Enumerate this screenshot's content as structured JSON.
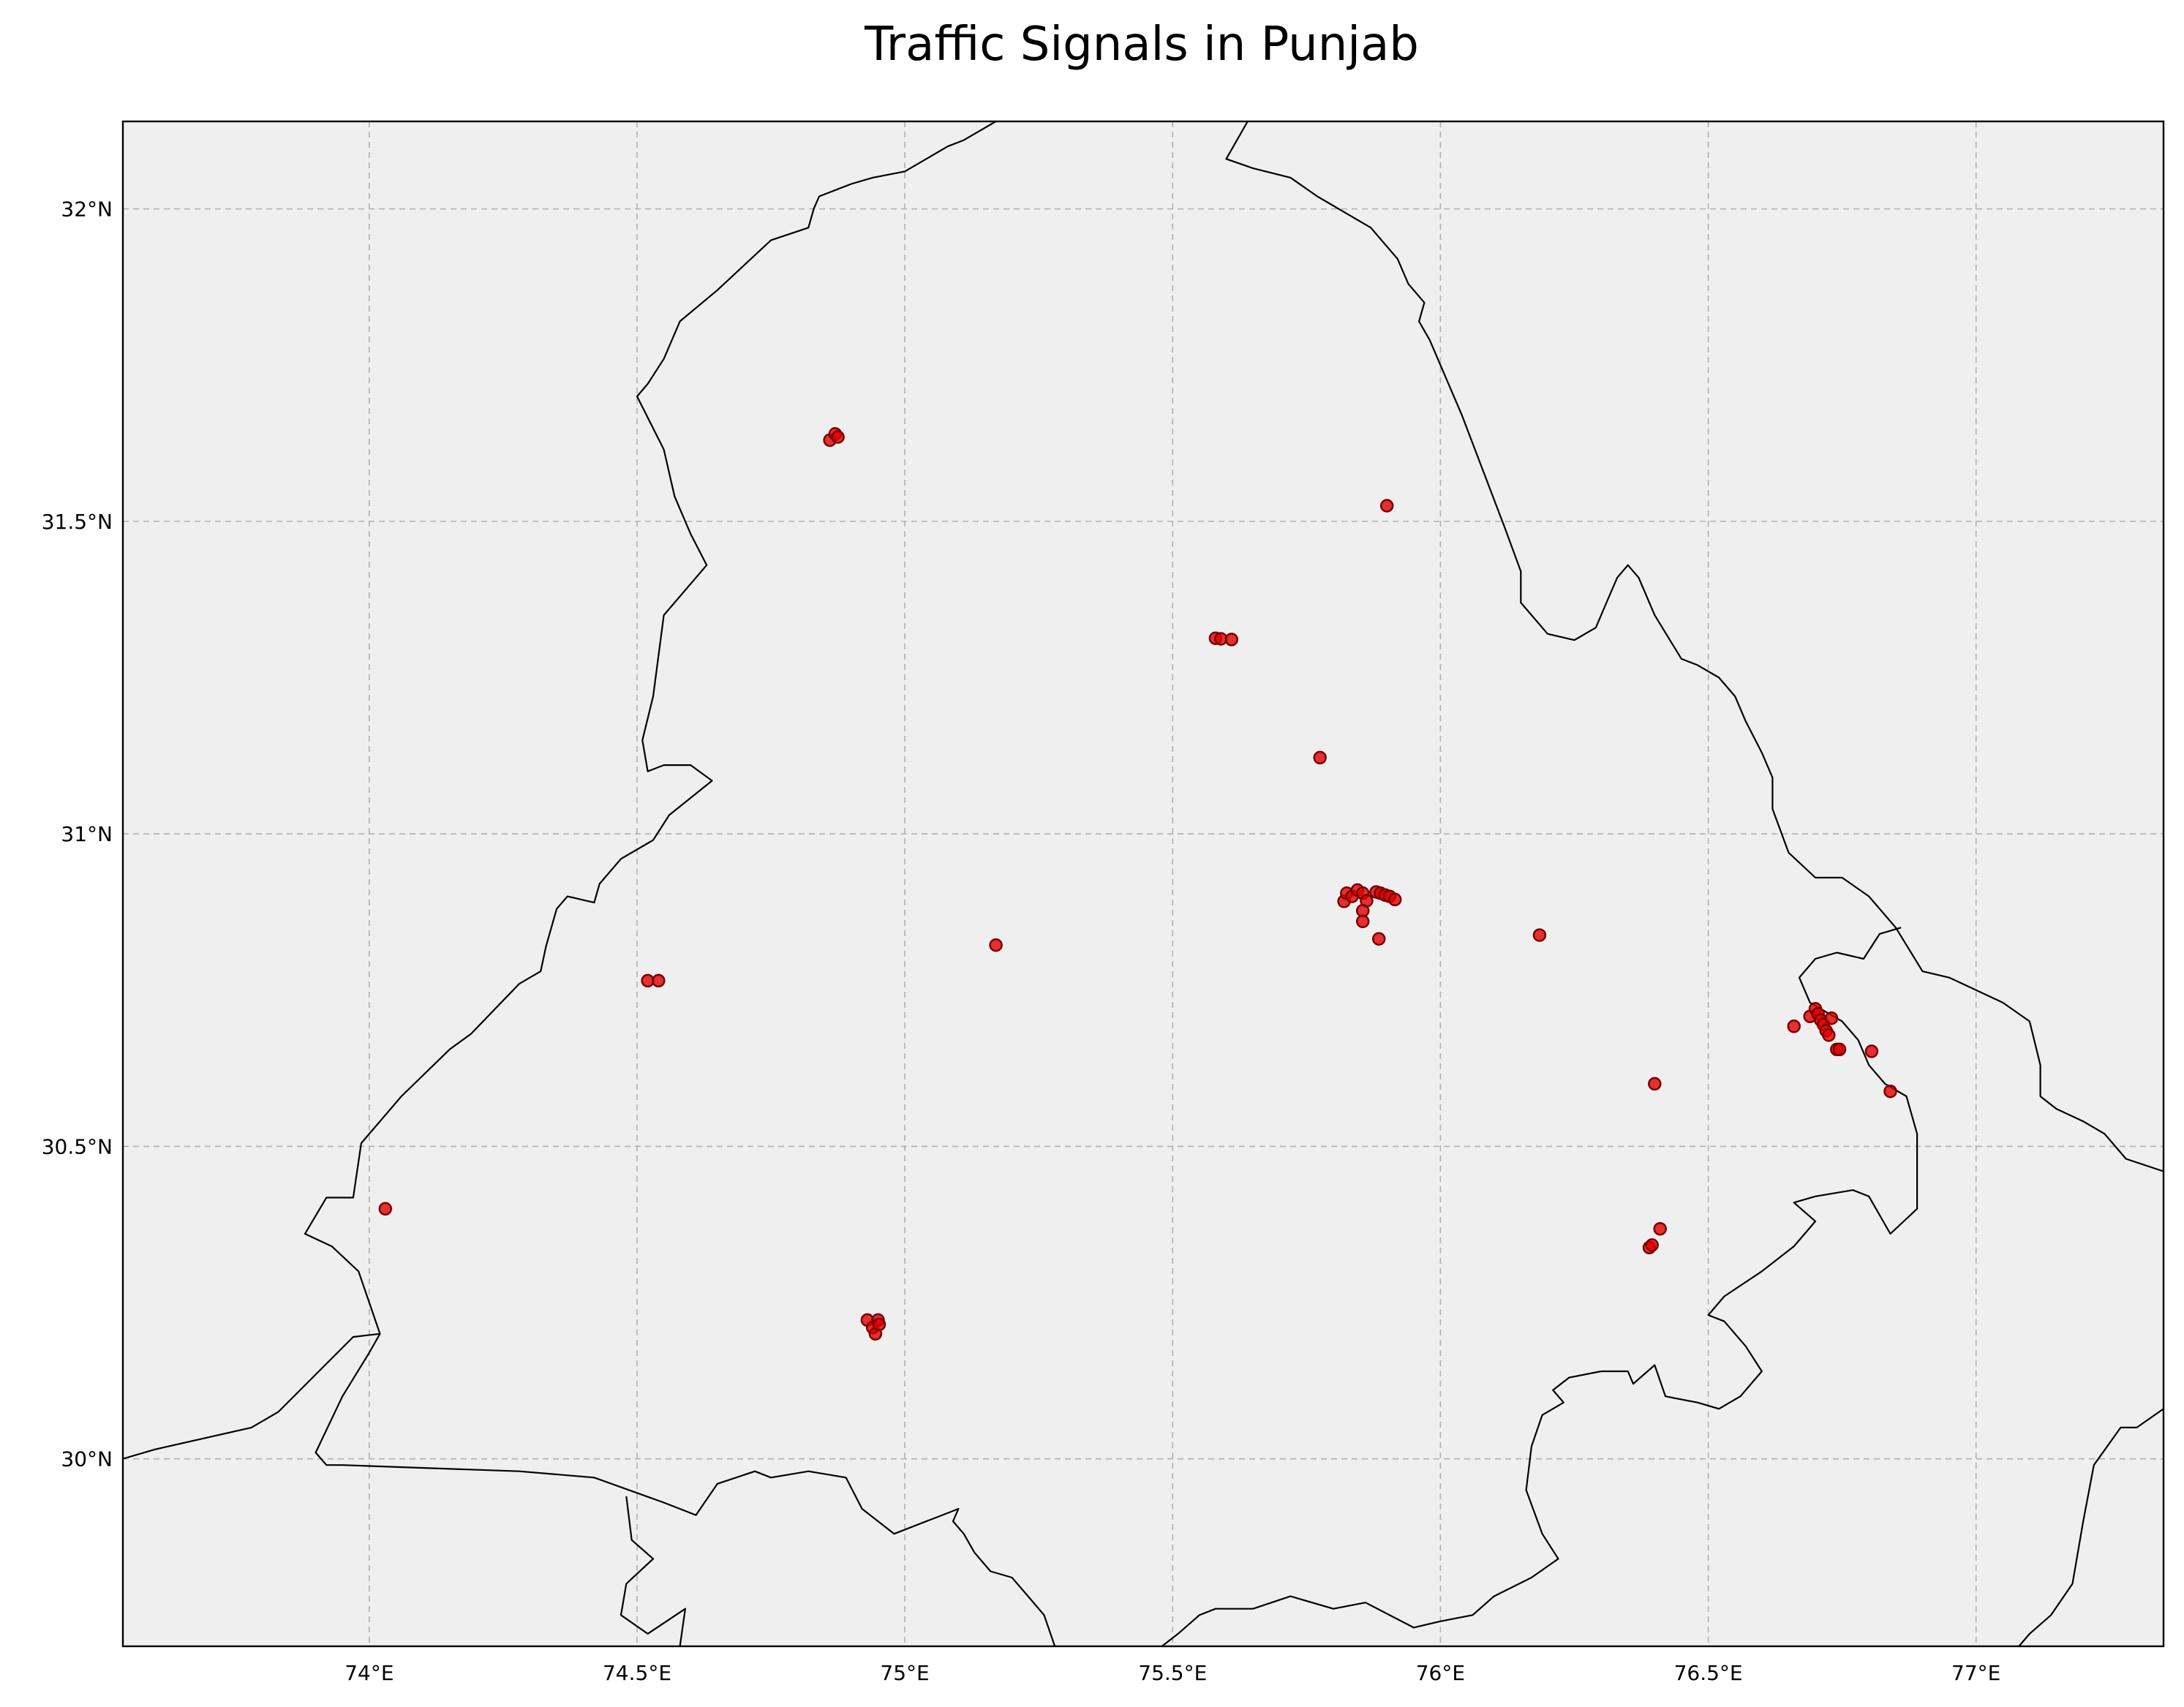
{
  "chart_data": {
    "type": "scatter",
    "title": "Traffic Signals in Punjab",
    "xlim": [
      73.54,
      77.35
    ],
    "ylim": [
      29.7,
      32.14
    ],
    "xticks": [
      74.0,
      74.5,
      75.0,
      75.5,
      76.0,
      76.5,
      77.0
    ],
    "xtick_labels": [
      "74°E",
      "74.5°E",
      "75°E",
      "75.5°E",
      "76°E",
      "76.5°E",
      "77°E"
    ],
    "yticks": [
      30.0,
      30.5,
      31.0,
      31.5,
      32.0
    ],
    "ytick_labels": [
      "30°N",
      "30.5°N",
      "31°N",
      "31.5°N",
      "32°N"
    ],
    "grid": true,
    "background_color": "#efefef",
    "marker_color": "#e00000",
    "marker_edge_color": "#7a0000",
    "border_color": "#000000",
    "series": [
      {
        "points": [
          {
            "lon": 74.86,
            "lat": 31.63
          },
          {
            "lon": 74.87,
            "lat": 31.64
          },
          {
            "lon": 74.875,
            "lat": 31.635
          },
          {
            "lon": 75.9,
            "lat": 31.525
          },
          {
            "lon": 75.58,
            "lat": 31.313
          },
          {
            "lon": 75.59,
            "lat": 31.312
          },
          {
            "lon": 75.61,
            "lat": 31.311
          },
          {
            "lon": 75.775,
            "lat": 31.122
          },
          {
            "lon": 75.82,
            "lat": 30.892
          },
          {
            "lon": 75.825,
            "lat": 30.905
          },
          {
            "lon": 75.835,
            "lat": 30.9
          },
          {
            "lon": 75.845,
            "lat": 30.91
          },
          {
            "lon": 75.855,
            "lat": 30.905
          },
          {
            "lon": 75.862,
            "lat": 30.893
          },
          {
            "lon": 75.855,
            "lat": 30.877
          },
          {
            "lon": 75.855,
            "lat": 30.86
          },
          {
            "lon": 75.88,
            "lat": 30.907
          },
          {
            "lon": 75.888,
            "lat": 30.905
          },
          {
            "lon": 75.897,
            "lat": 30.902
          },
          {
            "lon": 75.905,
            "lat": 30.9
          },
          {
            "lon": 75.915,
            "lat": 30.895
          },
          {
            "lon": 75.885,
            "lat": 30.832
          },
          {
            "lon": 76.185,
            "lat": 30.838
          },
          {
            "lon": 75.17,
            "lat": 30.822
          },
          {
            "lon": 74.52,
            "lat": 30.765
          },
          {
            "lon": 74.54,
            "lat": 30.765
          },
          {
            "lon": 76.66,
            "lat": 30.692
          },
          {
            "lon": 76.69,
            "lat": 30.708
          },
          {
            "lon": 76.7,
            "lat": 30.72
          },
          {
            "lon": 76.705,
            "lat": 30.712
          },
          {
            "lon": 76.71,
            "lat": 30.702
          },
          {
            "lon": 76.715,
            "lat": 30.695
          },
          {
            "lon": 76.72,
            "lat": 30.685
          },
          {
            "lon": 76.725,
            "lat": 30.678
          },
          {
            "lon": 76.73,
            "lat": 30.705
          },
          {
            "lon": 76.74,
            "lat": 30.655
          },
          {
            "lon": 76.745,
            "lat": 30.655
          },
          {
            "lon": 76.805,
            "lat": 30.652
          },
          {
            "lon": 76.84,
            "lat": 30.588
          },
          {
            "lon": 76.4,
            "lat": 30.6
          },
          {
            "lon": 76.41,
            "lat": 30.368
          },
          {
            "lon": 76.39,
            "lat": 30.338
          },
          {
            "lon": 76.395,
            "lat": 30.342
          },
          {
            "lon": 74.03,
            "lat": 30.4
          },
          {
            "lon": 74.93,
            "lat": 30.222
          },
          {
            "lon": 74.94,
            "lat": 30.21
          },
          {
            "lon": 74.945,
            "lat": 30.2
          },
          {
            "lon": 74.95,
            "lat": 30.222
          },
          {
            "lon": 74.952,
            "lat": 30.215
          }
        ]
      }
    ],
    "boundaries": [
      {
        "name": "outline-west-north",
        "points": [
          [
            73.54,
            30.0
          ],
          [
            73.6,
            30.015
          ],
          [
            73.78,
            30.05
          ],
          [
            73.83,
            30.075
          ],
          [
            73.97,
            30.195
          ],
          [
            74.02,
            30.2
          ],
          [
            73.98,
            30.3
          ],
          [
            73.93,
            30.34
          ],
          [
            73.88,
            30.36
          ],
          [
            73.92,
            30.418
          ],
          [
            73.97,
            30.418
          ],
          [
            73.985,
            30.505
          ],
          [
            74.06,
            30.58
          ],
          [
            74.15,
            30.655
          ],
          [
            74.19,
            30.68
          ],
          [
            74.28,
            30.76
          ],
          [
            74.32,
            30.78
          ],
          [
            74.33,
            30.82
          ],
          [
            74.35,
            30.88
          ],
          [
            74.37,
            30.9
          ],
          [
            74.42,
            30.89
          ],
          [
            74.43,
            30.92
          ],
          [
            74.47,
            30.96
          ],
          [
            74.53,
            30.99
          ],
          [
            74.56,
            31.03
          ],
          [
            74.64,
            31.085
          ],
          [
            74.6,
            31.11
          ],
          [
            74.55,
            31.11
          ],
          [
            74.52,
            31.1
          ],
          [
            74.51,
            31.15
          ],
          [
            74.53,
            31.22
          ],
          [
            74.55,
            31.35
          ],
          [
            74.63,
            31.43
          ],
          [
            74.6,
            31.48
          ],
          [
            74.57,
            31.54
          ],
          [
            74.55,
            31.615
          ],
          [
            74.5,
            31.7
          ],
          [
            74.52,
            31.72
          ],
          [
            74.55,
            31.76
          ],
          [
            74.58,
            31.82
          ],
          [
            74.65,
            31.87
          ],
          [
            74.75,
            31.95
          ],
          [
            74.82,
            31.97
          ],
          [
            74.83,
            32.0
          ],
          [
            74.84,
            32.02
          ],
          [
            74.9,
            32.04
          ],
          [
            74.94,
            32.05
          ],
          [
            75.0,
            32.06
          ],
          [
            75.08,
            32.1
          ],
          [
            75.11,
            32.11
          ],
          [
            75.17,
            32.14
          ]
        ]
      },
      {
        "name": "outline-north-east",
        "points": [
          [
            75.64,
            32.14
          ],
          [
            75.6,
            32.08
          ],
          [
            75.65,
            32.065
          ],
          [
            75.72,
            32.05
          ],
          [
            75.77,
            32.02
          ],
          [
            75.87,
            31.97
          ],
          [
            75.92,
            31.92
          ],
          [
            75.94,
            31.88
          ],
          [
            75.97,
            31.85
          ],
          [
            75.96,
            31.82
          ],
          [
            75.98,
            31.79
          ],
          [
            76.04,
            31.67
          ],
          [
            76.08,
            31.58
          ],
          [
            76.12,
            31.49
          ],
          [
            76.15,
            31.42
          ],
          [
            76.15,
            31.37
          ],
          [
            76.2,
            31.32
          ],
          [
            76.25,
            31.31
          ],
          [
            76.29,
            31.33
          ],
          [
            76.31,
            31.37
          ],
          [
            76.33,
            31.41
          ],
          [
            76.35,
            31.43
          ],
          [
            76.37,
            31.41
          ],
          [
            76.4,
            31.35
          ],
          [
            76.45,
            31.28
          ],
          [
            76.48,
            31.27
          ],
          [
            76.52,
            31.25
          ],
          [
            76.55,
            31.22
          ],
          [
            76.57,
            31.18
          ],
          [
            76.6,
            31.13
          ],
          [
            76.62,
            31.09
          ],
          [
            76.62,
            31.04
          ],
          [
            76.65,
            30.97
          ],
          [
            76.7,
            30.93
          ],
          [
            76.75,
            30.93
          ],
          [
            76.8,
            30.9
          ],
          [
            76.85,
            30.85
          ],
          [
            76.9,
            30.78
          ],
          [
            76.95,
            30.77
          ],
          [
            77.05,
            30.73
          ],
          [
            77.1,
            30.7
          ],
          [
            77.12,
            30.63
          ],
          [
            77.12,
            30.58
          ],
          [
            77.15,
            30.56
          ],
          [
            77.2,
            30.54
          ],
          [
            77.24,
            30.52
          ],
          [
            77.28,
            30.48
          ],
          [
            77.35,
            30.46
          ]
        ]
      },
      {
        "name": "outline-chandigarh-pocket",
        "points": [
          [
            76.86,
            30.85
          ],
          [
            76.82,
            30.84
          ],
          [
            76.79,
            30.8
          ],
          [
            76.74,
            30.81
          ],
          [
            76.7,
            30.8
          ],
          [
            76.67,
            30.77
          ],
          [
            76.69,
            30.73
          ],
          [
            76.75,
            30.7
          ],
          [
            76.78,
            30.67
          ],
          [
            76.8,
            30.63
          ],
          [
            76.83,
            30.6
          ],
          [
            76.87,
            30.58
          ],
          [
            76.89,
            30.52
          ],
          [
            76.89,
            30.4
          ],
          [
            76.84,
            30.36
          ],
          [
            76.8,
            30.42
          ],
          [
            76.77,
            30.43
          ],
          [
            76.7,
            30.42
          ],
          [
            76.66,
            30.41
          ],
          [
            76.7,
            30.38
          ],
          [
            76.66,
            30.34
          ],
          [
            76.6,
            30.3
          ],
          [
            76.53,
            30.26
          ],
          [
            76.5,
            30.23
          ],
          [
            76.53,
            30.22
          ],
          [
            76.57,
            30.18
          ],
          [
            76.6,
            30.14
          ],
          [
            76.56,
            30.1
          ],
          [
            76.52,
            30.08
          ],
          [
            76.48,
            30.09
          ],
          [
            76.42,
            30.1
          ],
          [
            76.4,
            30.15
          ],
          [
            76.36,
            30.12
          ],
          [
            76.35,
            30.14
          ],
          [
            76.3,
            30.14
          ],
          [
            76.24,
            30.13
          ],
          [
            76.21,
            30.11
          ],
          [
            76.23,
            30.09
          ],
          [
            76.19,
            30.07
          ],
          [
            76.17,
            30.02
          ],
          [
            76.16,
            29.95
          ],
          [
            76.19,
            29.88
          ],
          [
            76.22,
            29.84
          ],
          [
            76.17,
            29.81
          ],
          [
            76.1,
            29.78
          ],
          [
            76.06,
            29.75
          ],
          [
            76.0,
            29.74
          ],
          [
            75.95,
            29.73
          ],
          [
            75.86,
            29.77
          ],
          [
            75.8,
            29.76
          ],
          [
            75.72,
            29.78
          ],
          [
            75.65,
            29.76
          ],
          [
            75.58,
            29.76
          ],
          [
            75.55,
            29.75
          ],
          [
            75.51,
            29.72
          ],
          [
            75.48,
            29.7
          ]
        ]
      },
      {
        "name": "outline-south-haryana",
        "points": [
          [
            75.28,
            29.7
          ],
          [
            75.26,
            29.75
          ],
          [
            75.23,
            29.78
          ],
          [
            75.2,
            29.81
          ],
          [
            75.16,
            29.82
          ],
          [
            75.13,
            29.85
          ],
          [
            75.11,
            29.88
          ],
          [
            75.09,
            29.9
          ],
          [
            75.1,
            29.92
          ],
          [
            75.07,
            29.91
          ],
          [
            74.98,
            29.88
          ],
          [
            74.92,
            29.92
          ],
          [
            74.89,
            29.97
          ],
          [
            74.82,
            29.98
          ],
          [
            74.75,
            29.97
          ],
          [
            74.72,
            29.98
          ],
          [
            74.65,
            29.96
          ],
          [
            74.61,
            29.91
          ],
          [
            74.55,
            29.93
          ],
          [
            74.42,
            29.97
          ],
          [
            74.28,
            29.98
          ],
          [
            73.95,
            29.99
          ],
          [
            73.92,
            29.99
          ],
          [
            73.9,
            30.01
          ],
          [
            73.95,
            30.1
          ],
          [
            74.0,
            30.17
          ],
          [
            74.02,
            30.2
          ]
        ]
      },
      {
        "name": "outline-rajasthan-lobe",
        "points": [
          [
            74.48,
            29.94
          ],
          [
            74.49,
            29.87
          ],
          [
            74.53,
            29.84
          ],
          [
            74.48,
            29.8
          ],
          [
            74.47,
            29.75
          ],
          [
            74.52,
            29.72
          ],
          [
            74.59,
            29.76
          ],
          [
            74.58,
            29.7
          ]
        ]
      },
      {
        "name": "outline-east-lower",
        "points": [
          [
            77.35,
            30.08
          ],
          [
            77.3,
            30.05
          ],
          [
            77.27,
            30.05
          ],
          [
            77.22,
            29.99
          ],
          [
            77.2,
            29.9
          ],
          [
            77.18,
            29.8
          ],
          [
            77.14,
            29.75
          ],
          [
            77.1,
            29.72
          ],
          [
            77.08,
            29.7
          ]
        ]
      }
    ]
  }
}
